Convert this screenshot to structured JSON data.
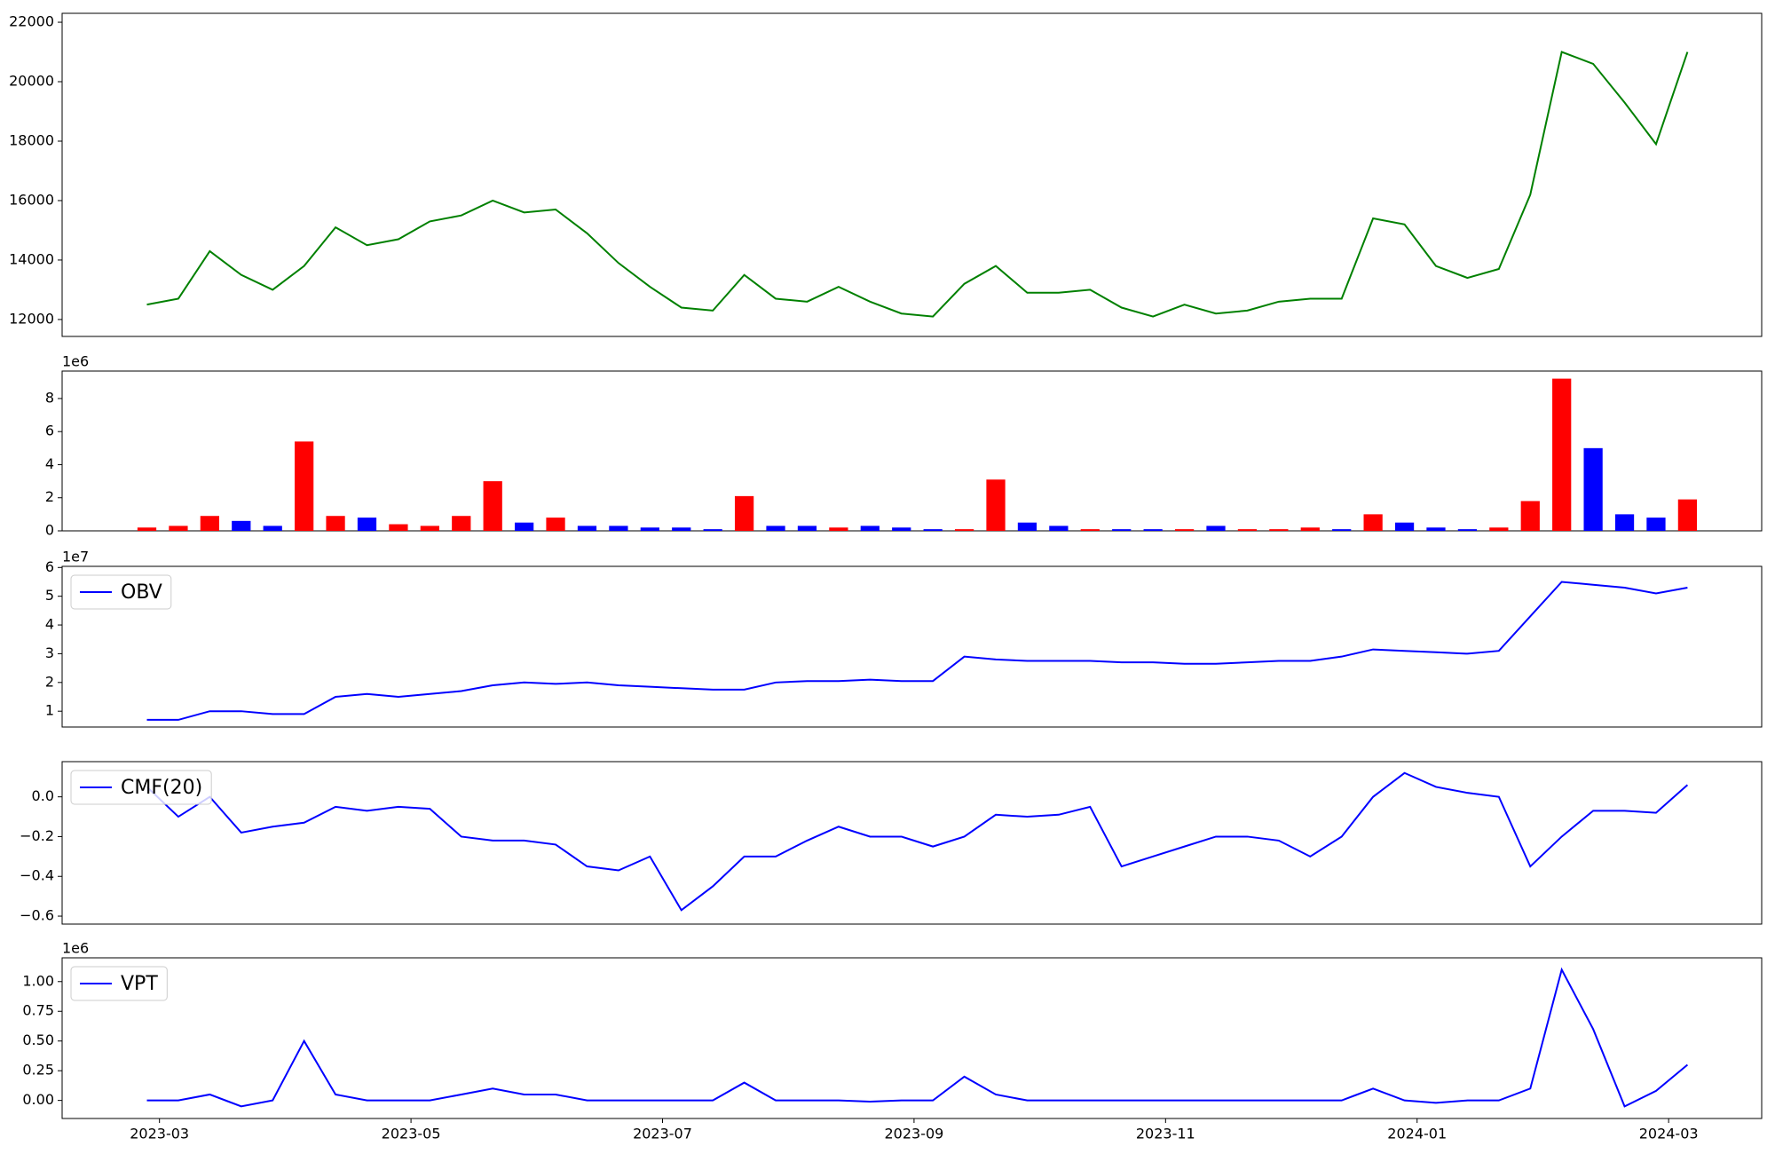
{
  "chart_data": [
    {
      "type": "line",
      "color": "green",
      "x": [
        -0.1,
        0.15,
        0.4,
        0.65,
        0.9,
        1.15,
        1.4,
        1.65,
        1.9,
        2.15,
        2.4,
        2.65,
        2.9,
        3.15,
        3.4,
        3.65,
        3.9,
        4.15,
        4.4,
        4.65,
        4.9,
        5.15,
        5.4,
        5.65,
        5.9,
        6.15,
        6.4,
        6.65,
        6.9,
        7.15,
        7.4,
        7.65,
        7.9,
        8.15,
        8.4,
        8.65,
        8.9,
        9.15,
        9.4,
        9.65,
        9.9,
        10.15,
        10.4,
        10.65,
        10.9,
        11.15,
        11.4,
        11.65,
        11.9,
        12.15
      ],
      "values": [
        12500,
        12700,
        14300,
        13500,
        13000,
        13800,
        15100,
        14500,
        14700,
        15300,
        15500,
        16000,
        15600,
        15700,
        14900,
        13900,
        13100,
        12400,
        12300,
        13500,
        12700,
        12600,
        13100,
        12600,
        12200,
        12100,
        13200,
        13800,
        12900,
        12900,
        13000,
        12400,
        12100,
        12500,
        12200,
        12300,
        12600,
        12700,
        12700,
        15400,
        15200,
        13800,
        13400,
        13700,
        16200,
        21000,
        20600,
        19300,
        17900,
        21000
      ],
      "xlim": [
        -0.774,
        12.74
      ],
      "ylim": [
        11430,
        22300
      ],
      "yticks": [
        12000,
        14000,
        16000,
        18000,
        20000,
        22000
      ]
    },
    {
      "type": "bar",
      "offset_text": "1e6",
      "x": [
        -0.1,
        0.15,
        0.4,
        0.65,
        0.9,
        1.15,
        1.4,
        1.65,
        1.9,
        2.15,
        2.4,
        2.65,
        2.9,
        3.15,
        3.4,
        3.65,
        3.9,
        4.15,
        4.4,
        4.65,
        4.9,
        5.15,
        5.4,
        5.65,
        5.9,
        6.15,
        6.4,
        6.65,
        6.9,
        7.15,
        7.4,
        7.65,
        7.9,
        8.15,
        8.4,
        8.65,
        8.9,
        9.15,
        9.4,
        9.65,
        9.9,
        10.15,
        10.4,
        10.65,
        10.9,
        11.15,
        11.4,
        11.65,
        11.9,
        12.15
      ],
      "values": [
        0.2,
        0.3,
        0.9,
        0.6,
        0.3,
        5.4,
        0.9,
        0.8,
        0.4,
        0.3,
        0.9,
        3.0,
        0.5,
        0.8,
        0.3,
        0.3,
        0.2,
        0.2,
        0.1,
        2.1,
        0.3,
        0.3,
        0.2,
        0.3,
        0.2,
        0.1,
        0.1,
        3.1,
        0.5,
        0.3,
        0.1,
        0.1,
        0.1,
        0.1,
        0.3,
        0.1,
        0.1,
        0.2,
        0.1,
        1.0,
        0.5,
        0.2,
        0.1,
        0.2,
        1.8,
        9.2,
        5.0,
        1.0,
        0.8,
        1.9
      ],
      "colors": [
        "red",
        "red",
        "red",
        "blue",
        "blue",
        "red",
        "red",
        "blue",
        "red",
        "red",
        "red",
        "red",
        "blue",
        "red",
        "blue",
        "blue",
        "blue",
        "blue",
        "blue",
        "red",
        "blue",
        "blue",
        "red",
        "blue",
        "blue",
        "blue",
        "red",
        "red",
        "blue",
        "blue",
        "red",
        "blue",
        "blue",
        "red",
        "blue",
        "red",
        "red",
        "red",
        "blue",
        "red",
        "blue",
        "blue",
        "blue",
        "red",
        "red",
        "red",
        "blue",
        "blue",
        "blue",
        "red"
      ],
      "xlim": [
        -0.774,
        12.74
      ],
      "ylim": [
        0,
        9.66
      ],
      "yticks": [
        0,
        2,
        4,
        6,
        8
      ]
    },
    {
      "type": "line",
      "offset_text": "1e7",
      "legend": "upper left",
      "x": [
        -0.1,
        0.15,
        0.4,
        0.65,
        0.9,
        1.15,
        1.4,
        1.65,
        1.9,
        2.15,
        2.4,
        2.65,
        2.9,
        3.15,
        3.4,
        3.65,
        3.9,
        4.15,
        4.4,
        4.65,
        4.9,
        5.15,
        5.4,
        5.65,
        5.9,
        6.15,
        6.4,
        6.65,
        6.9,
        7.15,
        7.4,
        7.65,
        7.9,
        8.15,
        8.4,
        8.65,
        8.9,
        9.15,
        9.4,
        9.65,
        9.9,
        10.15,
        10.4,
        10.65,
        10.9,
        11.15,
        11.4,
        11.65,
        11.9,
        12.15
      ],
      "series": [
        {
          "name": "OBV",
          "color": "blue",
          "values": [
            0.7,
            0.7,
            1.0,
            1.0,
            0.9,
            0.9,
            1.5,
            1.6,
            1.5,
            1.6,
            1.7,
            1.9,
            2.0,
            1.95,
            2.0,
            1.9,
            1.85,
            1.8,
            1.75,
            1.75,
            2.0,
            2.05,
            2.05,
            2.1,
            2.05,
            2.05,
            2.9,
            2.8,
            2.75,
            2.75,
            2.75,
            2.7,
            2.7,
            2.65,
            2.65,
            2.7,
            2.75,
            2.75,
            2.9,
            3.15,
            3.1,
            3.05,
            3.0,
            3.1,
            4.3,
            5.5,
            5.4,
            5.3,
            5.1,
            5.3
          ]
        }
      ],
      "xlim": [
        -0.774,
        12.74
      ],
      "ylim": [
        0.45,
        6.04
      ],
      "yticks": [
        1,
        2,
        3,
        4,
        5,
        6
      ]
    },
    {
      "type": "line",
      "legend": "upper left",
      "x": [
        -0.1,
        0.15,
        0.4,
        0.65,
        0.9,
        1.15,
        1.4,
        1.65,
        1.9,
        2.15,
        2.4,
        2.65,
        2.9,
        3.15,
        3.4,
        3.65,
        3.9,
        4.15,
        4.4,
        4.65,
        4.9,
        5.15,
        5.4,
        5.65,
        5.9,
        6.15,
        6.4,
        6.65,
        6.9,
        7.15,
        7.4,
        7.65,
        7.9,
        8.15,
        8.4,
        8.65,
        8.9,
        9.15,
        9.4,
        9.65,
        9.9,
        10.15,
        10.4,
        10.65,
        10.9,
        11.15,
        11.4,
        11.65,
        11.9,
        12.15
      ],
      "series": [
        {
          "name": "CMF(20)",
          "color": "blue",
          "values": [
            0.05,
            -0.1,
            0.0,
            -0.18,
            -0.15,
            -0.13,
            -0.05,
            -0.07,
            -0.05,
            -0.06,
            -0.2,
            -0.22,
            -0.22,
            -0.24,
            -0.35,
            -0.37,
            -0.3,
            -0.57,
            -0.45,
            -0.3,
            -0.3,
            -0.22,
            -0.15,
            -0.2,
            -0.2,
            -0.25,
            -0.2,
            -0.09,
            -0.1,
            -0.09,
            -0.05,
            -0.35,
            -0.3,
            -0.25,
            -0.2,
            -0.2,
            -0.22,
            -0.3,
            -0.2,
            0.0,
            0.12,
            0.05,
            0.02,
            0.0,
            -0.35,
            -0.2,
            -0.07,
            -0.07,
            -0.08,
            0.06
          ]
        }
      ],
      "xlim": [
        -0.774,
        12.74
      ],
      "ylim": [
        -0.64,
        0.177
      ],
      "yticks": [
        {
          "value": -0.6,
          "label": "−0.6"
        },
        {
          "value": -0.4,
          "label": "−0.4"
        },
        {
          "value": -0.2,
          "label": "−0.2"
        },
        {
          "value": 0,
          "label": "0.0"
        }
      ]
    },
    {
      "type": "line",
      "offset_text": "1e6",
      "legend": "upper left",
      "x": [
        -0.1,
        0.15,
        0.4,
        0.65,
        0.9,
        1.15,
        1.4,
        1.65,
        1.9,
        2.15,
        2.4,
        2.65,
        2.9,
        3.15,
        3.4,
        3.65,
        3.9,
        4.15,
        4.4,
        4.65,
        4.9,
        5.15,
        5.4,
        5.65,
        5.9,
        6.15,
        6.4,
        6.65,
        6.9,
        7.15,
        7.4,
        7.65,
        7.9,
        8.15,
        8.4,
        8.65,
        8.9,
        9.15,
        9.4,
        9.65,
        9.9,
        10.15,
        10.4,
        10.65,
        10.9,
        11.15,
        11.4,
        11.65,
        11.9,
        12.15
      ],
      "series": [
        {
          "name": "VPT",
          "color": "blue",
          "values": [
            0.0,
            0.0,
            0.05,
            -0.05,
            0.0,
            0.5,
            0.05,
            0.0,
            0.0,
            0.0,
            0.05,
            0.1,
            0.05,
            0.05,
            0.0,
            0.0,
            0.0,
            0.0,
            0.0,
            0.15,
            0.0,
            0.0,
            0.0,
            -0.01,
            0.0,
            0.0,
            0.2,
            0.05,
            0.0,
            0.0,
            0.0,
            0.0,
            0.0,
            0.0,
            0.0,
            0.0,
            0.0,
            0.0,
            0.0,
            0.1,
            0.0,
            -0.02,
            0.0,
            0.0,
            0.1,
            1.1,
            0.6,
            -0.05,
            0.08,
            0.3
          ]
        }
      ],
      "xlim": [
        -0.774,
        12.74
      ],
      "ylim": [
        -0.152,
        1.2
      ],
      "yticks": [
        {
          "value": 0,
          "label": "0.00"
        },
        {
          "value": 0.25,
          "label": "0.25"
        },
        {
          "value": 0.5,
          "label": "0.50"
        },
        {
          "value": 0.75,
          "label": "0.75"
        },
        {
          "value": 1,
          "label": "1.00"
        }
      ],
      "xticks": [
        {
          "value": 0,
          "label": "2023-03"
        },
        {
          "value": 2,
          "label": "2023-05"
        },
        {
          "value": 4,
          "label": "2023-07"
        },
        {
          "value": 6,
          "label": "2023-09"
        },
        {
          "value": 8,
          "label": "2023-11"
        },
        {
          "value": 10,
          "label": "2024-01"
        },
        {
          "value": 12,
          "label": "2024-03"
        }
      ]
    }
  ]
}
